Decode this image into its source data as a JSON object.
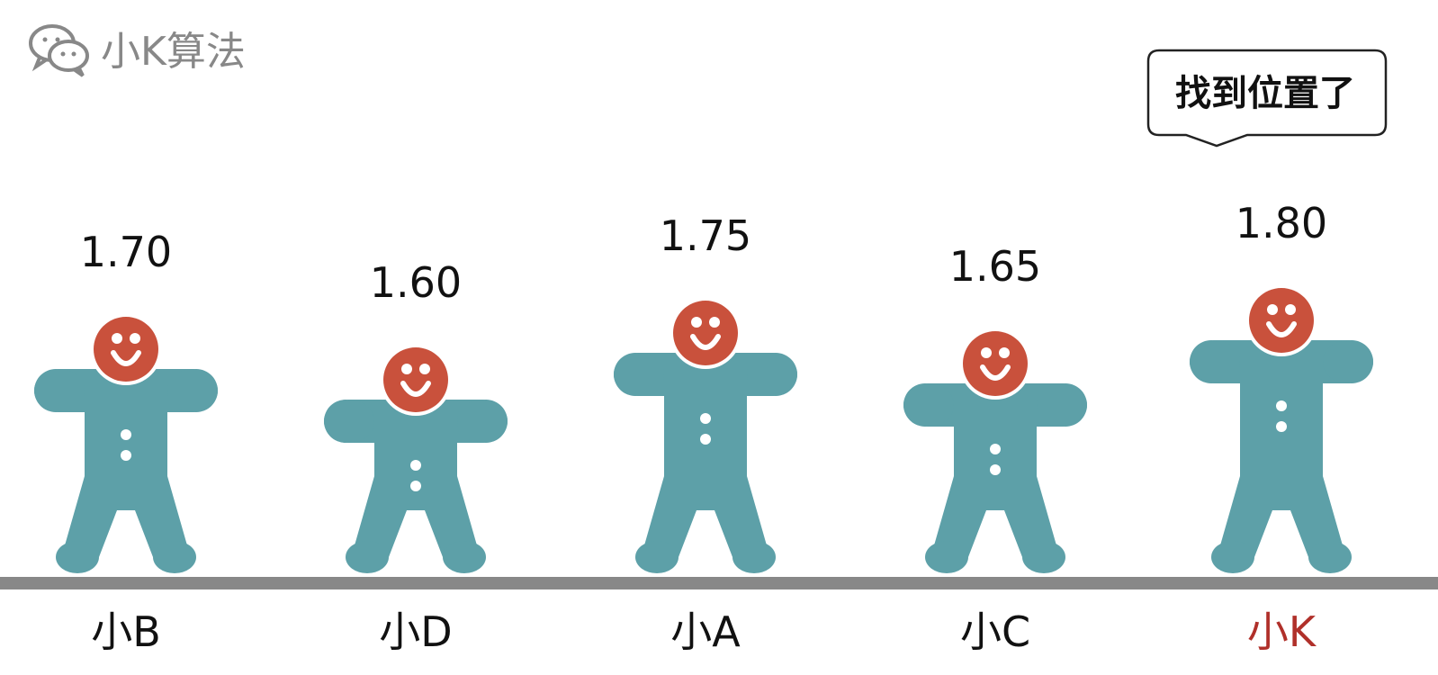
{
  "brand": {
    "name": "小K算法",
    "icon": "wechat-icon",
    "color": "#888888"
  },
  "speech_bubble": {
    "text": "找到位置了"
  },
  "colors": {
    "body": "#5da0a8",
    "head": "#c9513c",
    "ground": "#888888",
    "highlight_name": "#b0302a",
    "text": "#111111"
  },
  "people": [
    {
      "name": "小B",
      "height": "1.70",
      "highlighted": false
    },
    {
      "name": "小D",
      "height": "1.60",
      "highlighted": false
    },
    {
      "name": "小A",
      "height": "1.75",
      "highlighted": false
    },
    {
      "name": "小C",
      "height": "1.65",
      "highlighted": false
    },
    {
      "name": "小K",
      "height": "1.80",
      "highlighted": true
    }
  ]
}
